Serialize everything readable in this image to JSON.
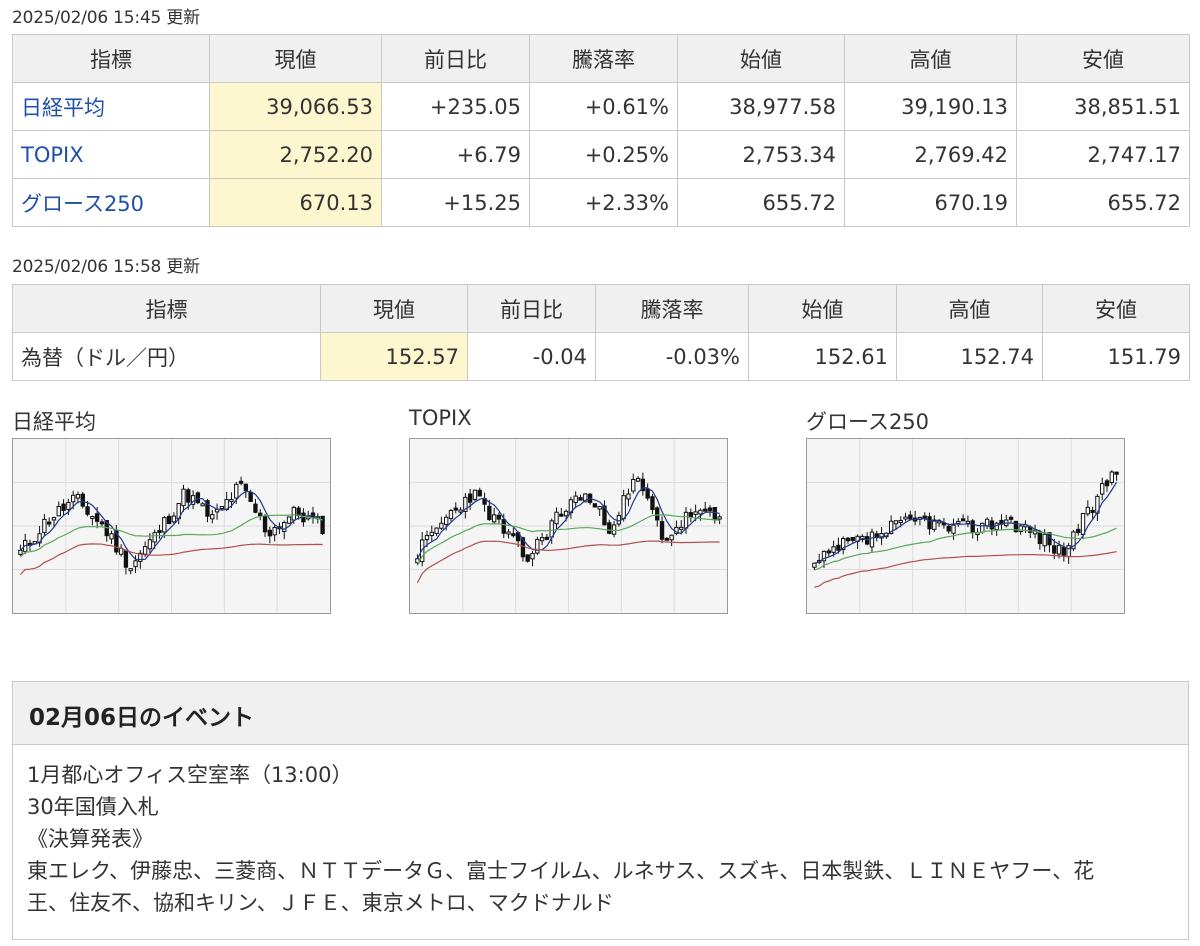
{
  "stock_update": "2025/02/06 15:45 更新",
  "fx_update": "2025/02/06 15:58 更新",
  "headers": [
    "指標",
    "現値",
    "前日比",
    "騰落率",
    "始値",
    "高値",
    "安値"
  ],
  "stocks": [
    {
      "name": "日経平均",
      "current": "39,066.53",
      "change": "+235.05",
      "rate": "+0.61%",
      "open": "38,977.58",
      "high": "39,190.13",
      "low": "38,851.51"
    },
    {
      "name": "TOPIX",
      "current": "2,752.20",
      "change": "+6.79",
      "rate": "+0.25%",
      "open": "2,753.34",
      "high": "2,769.42",
      "low": "2,747.17"
    },
    {
      "name": "グロース250",
      "current": "670.13",
      "change": "+15.25",
      "rate": "+2.33%",
      "open": "655.72",
      "high": "670.19",
      "low": "655.72"
    }
  ],
  "fx": [
    {
      "name": "為替（ドル／円）",
      "current": "152.57",
      "change": "-0.04",
      "rate": "-0.03%",
      "open": "152.61",
      "high": "152.74",
      "low": "151.79"
    }
  ],
  "colors": {
    "up": "#e0232d",
    "down": "#1e50a8",
    "current_bg": "#fcf7cf",
    "ma_short": "#1f3a8a",
    "ma_mid": "#5aa85a",
    "ma_long": "#b05050"
  },
  "charts": [
    {
      "title": "日経平均",
      "seed": 11,
      "trend": [
        0.3,
        0.55,
        0.7,
        0.5,
        0.2,
        0.45,
        0.75,
        0.55,
        0.8,
        0.45,
        0.6,
        0.5
      ]
    },
    {
      "title": "TOPIX",
      "seed": 23,
      "trend": [
        0.3,
        0.55,
        0.75,
        0.5,
        0.25,
        0.55,
        0.75,
        0.5,
        0.85,
        0.4,
        0.6,
        0.55
      ]
    },
    {
      "title": "グロース250",
      "seed": 37,
      "trend": [
        0.2,
        0.35,
        0.4,
        0.5,
        0.55,
        0.48,
        0.5,
        0.55,
        0.45,
        0.3,
        0.6,
        0.95
      ]
    }
  ],
  "events": {
    "title": "02月06日のイベント",
    "lines": [
      "1月都心オフィス空室率（13:00）",
      "30年国債入札",
      "《決算発表》",
      "東エレク、伊藤忠、三菱商、ＮＴＴデータＧ、富士フイルム、ルネサス、スズキ、日本製鉄、ＬＩＮＥヤフー、花",
      "王、住友不、協和キリン、ＪＦＥ、東京メトロ、マクドナルド"
    ]
  }
}
